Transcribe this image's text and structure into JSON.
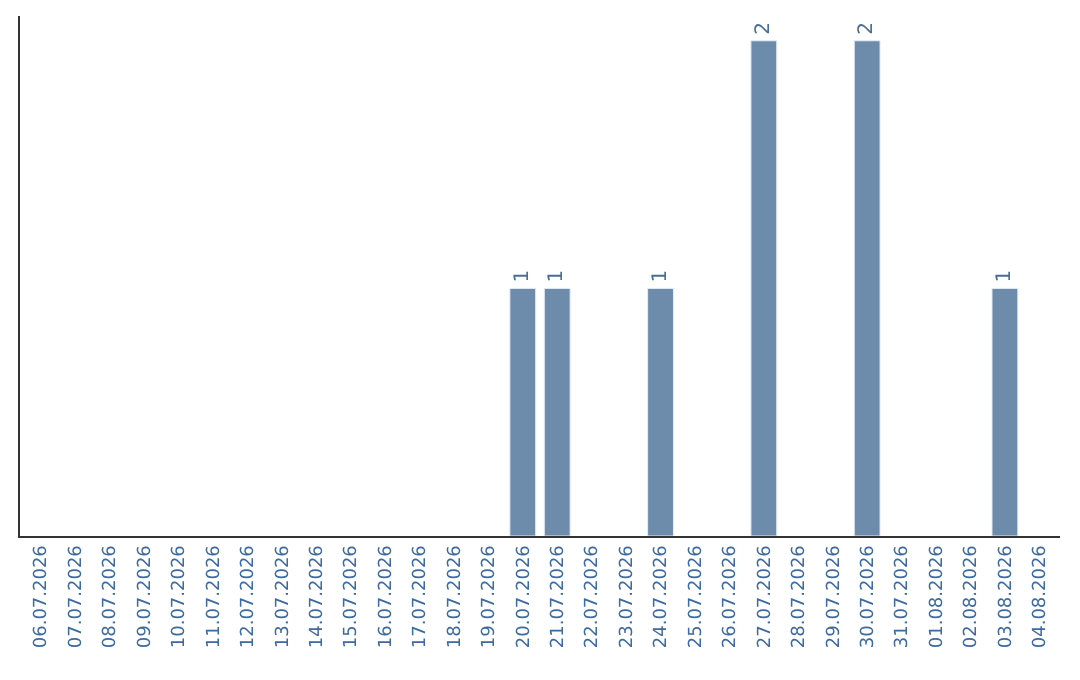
{
  "chart_data": {
    "type": "bar",
    "categories": [
      "06.07.2026",
      "07.07.2026",
      "08.07.2026",
      "09.07.2026",
      "10.07.2026",
      "11.07.2026",
      "12.07.2026",
      "13.07.2026",
      "14.07.2026",
      "15.07.2026",
      "16.07.2026",
      "17.07.2026",
      "18.07.2026",
      "19.07.2026",
      "20.07.2026",
      "21.07.2026",
      "22.07.2026",
      "23.07.2026",
      "24.07.2026",
      "25.07.2026",
      "26.07.2026",
      "27.07.2026",
      "28.07.2026",
      "29.07.2026",
      "30.07.2026",
      "31.07.2026",
      "01.08.2026",
      "02.08.2026",
      "03.08.2026",
      "04.08.2026"
    ],
    "values": [
      null,
      null,
      null,
      null,
      null,
      null,
      null,
      null,
      null,
      null,
      null,
      null,
      null,
      null,
      1,
      1,
      null,
      null,
      1,
      null,
      null,
      2,
      null,
      null,
      2,
      null,
      null,
      null,
      1,
      null
    ],
    "value_labels": [
      null,
      null,
      null,
      null,
      null,
      null,
      null,
      null,
      null,
      null,
      null,
      null,
      null,
      null,
      "1",
      "1",
      null,
      null,
      "1",
      null,
      null,
      "2",
      null,
      null,
      "2",
      null,
      null,
      null,
      "1",
      null
    ],
    "color": "#6d8cab",
    "ylim": [
      0,
      2.1
    ],
    "tick_labels": "x",
    "legend": false
  }
}
